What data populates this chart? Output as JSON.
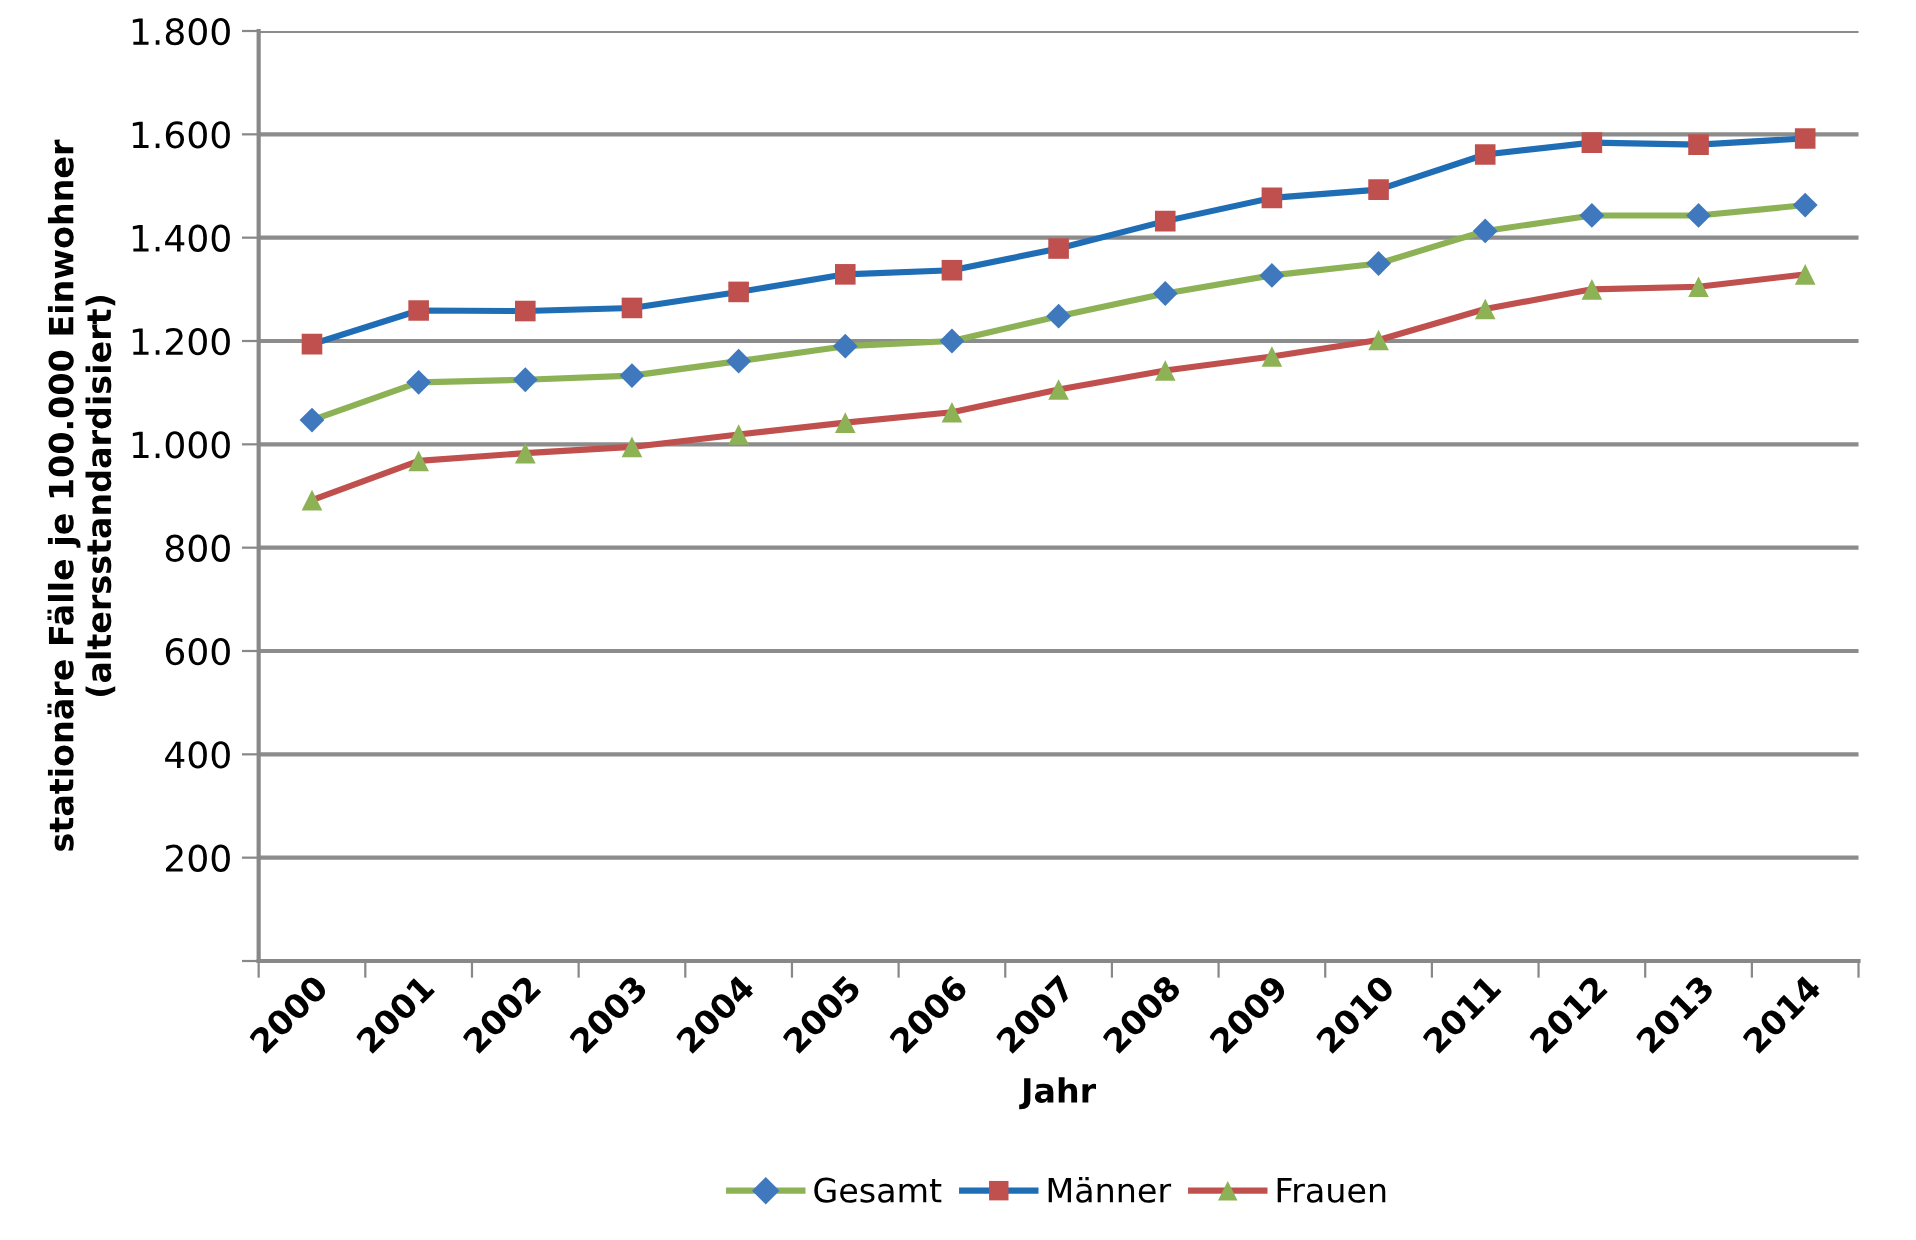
{
  "chart_data": {
    "type": "line",
    "xlabel": "Jahr",
    "ylabel": "stationäre Fälle je 100.000 Einwohner\n(altersstandardisiert)",
    "categories": [
      "2000",
      "2001",
      "2002",
      "2003",
      "2004",
      "2005",
      "2006",
      "2007",
      "2008",
      "2009",
      "2010",
      "2011",
      "2012",
      "2013",
      "2014"
    ],
    "series": [
      {
        "name": "Gesamt",
        "color": "#8db255",
        "colors": [
          "#3f78bd",
          "#3f78bd",
          "#3f78bd",
          "#3f78bd",
          "#3f78bd",
          "#3f78bd",
          "#3f78bd",
          "#3f78bd",
          "#3f78bd",
          "#3f78bd",
          "#3f78bd",
          "#3f78bd",
          "#3f78bd",
          "#3f78bd",
          "#3f78bd"
        ],
        "marker": "diamond",
        "values": [
          1047,
          1120,
          1125,
          1133,
          1161,
          1190,
          1200,
          1248,
          1292,
          1327,
          1350,
          1413,
          1443,
          1443,
          1463
        ]
      },
      {
        "name": "Männer",
        "color": "#1f6db5",
        "colors": [
          "#c0504d",
          "#c0504d",
          "#c0504d",
          "#c0504d",
          "#c0504d",
          "#c0504d",
          "#c0504d",
          "#c0504d",
          "#c0504d",
          "#c0504d",
          "#c0504d",
          "#c0504d",
          "#c0504d",
          "#c0504d",
          "#c0504d"
        ],
        "marker": "square",
        "values": [
          1194,
          1259,
          1258,
          1264,
          1295,
          1329,
          1337,
          1379,
          1432,
          1477,
          1493,
          1561,
          1584,
          1580,
          1592
        ]
      },
      {
        "name": "Frauen",
        "color": "#c0504d",
        "colors": [
          "#8db255",
          "#8db255",
          "#8db255",
          "#8db255",
          "#8db255",
          "#8db255",
          "#8db255",
          "#8db255",
          "#8db255",
          "#8db255",
          "#8db255",
          "#8db255",
          "#8db255",
          "#8db255",
          "#8db255"
        ],
        "marker": "triangle",
        "values": [
          892,
          968,
          983,
          995,
          1019,
          1042,
          1062,
          1106,
          1143,
          1170,
          1202,
          1262,
          1300,
          1305,
          1329
        ]
      }
    ],
    "ylim": [
      0,
      1800
    ],
    "yticks": [
      {
        "value": 0,
        "label": null
      },
      {
        "value": 200,
        "label": "200"
      },
      {
        "value": 400,
        "label": "400"
      },
      {
        "value": 600,
        "label": "600"
      },
      {
        "value": 800,
        "label": "800"
      },
      {
        "value": 1000,
        "label": "1.000"
      },
      {
        "value": 1200,
        "label": "1.200"
      },
      {
        "value": 1400,
        "label": "1.400"
      },
      {
        "value": 1600,
        "label": "1.600"
      },
      {
        "value": 1800,
        "label": "1.800"
      }
    ],
    "grid": "y",
    "legend": "bottom",
    "line_style": "solid"
  }
}
